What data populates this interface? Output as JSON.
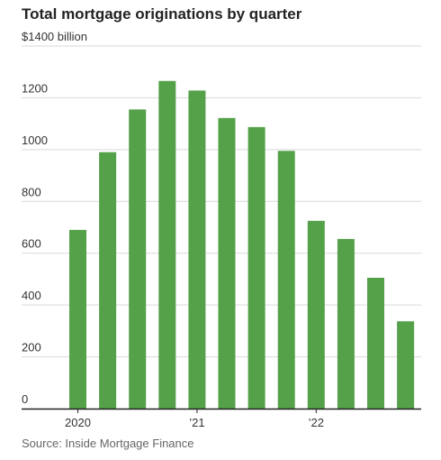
{
  "chart_data": {
    "type": "bar",
    "title": "Total mortgage originations by quarter",
    "source": "Source: Inside Mortgage Finance",
    "y_top_label": "$1400 billion",
    "categories": [
      "2020 Q1",
      "2020 Q2",
      "2020 Q3",
      "2020 Q4",
      "2021 Q1",
      "2021 Q2",
      "2021 Q3",
      "2021 Q4",
      "2022 Q1",
      "2022 Q2",
      "2022 Q3",
      "2022 Q4"
    ],
    "values": [
      690,
      990,
      1155,
      1265,
      1228,
      1122,
      1087,
      995,
      725,
      655,
      505,
      337
    ],
    "ylim": [
      0,
      1400
    ],
    "yticks": [
      0,
      200,
      400,
      600,
      800,
      1000,
      1200,
      1400
    ],
    "ytick_labels": [
      "0",
      "200",
      "400",
      "600",
      "800",
      "1000",
      "1200",
      "$1400 billion"
    ],
    "xtick_labels": [
      {
        "index": 0,
        "label": "2020"
      },
      {
        "index": 4,
        "label": "’21"
      },
      {
        "index": 8,
        "label": "’22"
      }
    ],
    "bar_color": "#55a14a",
    "grid": true,
    "xlabel": "",
    "ylabel": ""
  }
}
